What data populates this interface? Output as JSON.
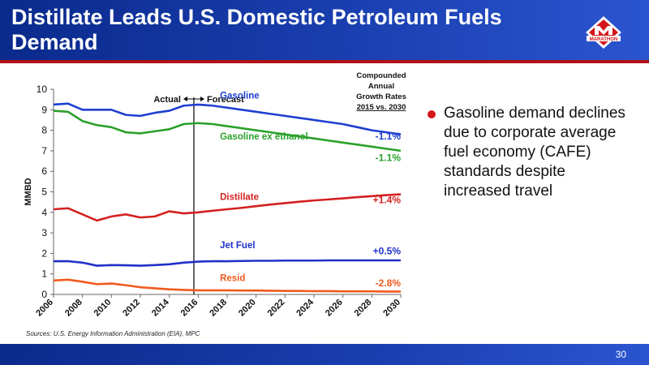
{
  "header": {
    "title": "Distillate Leads U.S. Domestic Petroleum Fuels Demand",
    "logo_text": "MARATHON"
  },
  "bullet": {
    "text": "Gasoline demand declines due to corporate average fuel economy (CAFE) standards despite increased travel"
  },
  "footer": {
    "sources": "Sources:  U.S. Energy Information Administration (EIA), MPC",
    "page_number": "30"
  },
  "colors": {
    "header_blue": "#1a3fb0",
    "accent_red": "#d4161b",
    "gasoline": "#1f3fd0",
    "gasoline_ex_ethanol": "#2aa02a",
    "distillate": "#d42020",
    "jet_fuel": "#2030c8",
    "resid": "#f05a1e"
  },
  "chart_data": {
    "type": "line",
    "ylabel": "MMBD",
    "ylim": [
      0,
      10
    ],
    "xlim": [
      2006,
      2030
    ],
    "yticks": [
      0,
      1,
      2,
      3,
      4,
      5,
      6,
      7,
      8,
      9,
      10
    ],
    "xticks": [
      "2006",
      "2008",
      "2010",
      "2012",
      "2014",
      "2016",
      "2018",
      "2020",
      "2022",
      "2024",
      "2026",
      "2028",
      "2030"
    ],
    "divider_x": 2015.7,
    "actual_label": "Actual",
    "forecast_label": "Forecast",
    "growth_header": [
      "Compounded",
      "Annual",
      "Growth Rates",
      "2015 vs. 2030"
    ],
    "x": [
      2006,
      2007,
      2008,
      2009,
      2010,
      2011,
      2012,
      2013,
      2014,
      2015,
      2016,
      2017,
      2018,
      2019,
      2020,
      2021,
      2022,
      2023,
      2024,
      2025,
      2026,
      2027,
      2028,
      2029,
      2030
    ],
    "series": [
      {
        "name": "Gasoline",
        "color": "#1f3fd0",
        "growth": "-1.1%",
        "values": [
          9.25,
          9.3,
          9.0,
          9.0,
          9.0,
          8.75,
          8.7,
          8.85,
          8.95,
          9.2,
          9.25,
          9.2,
          9.1,
          9.0,
          8.9,
          8.8,
          8.7,
          8.6,
          8.5,
          8.4,
          8.3,
          8.15,
          8.0,
          7.9,
          7.8
        ]
      },
      {
        "name": "Gasoline ex ethanol",
        "color": "#2aa02a",
        "growth": "-1.1%",
        "values": [
          8.95,
          8.9,
          8.45,
          8.25,
          8.15,
          7.9,
          7.85,
          7.95,
          8.05,
          8.3,
          8.35,
          8.3,
          8.2,
          8.1,
          8.0,
          7.9,
          7.8,
          7.7,
          7.6,
          7.5,
          7.4,
          7.3,
          7.2,
          7.1,
          7.0
        ]
      },
      {
        "name": "Distillate",
        "color": "#d42020",
        "growth": "+1.4%",
        "values": [
          4.15,
          4.2,
          3.9,
          3.6,
          3.8,
          3.9,
          3.75,
          3.8,
          4.05,
          3.95,
          4.0,
          4.08,
          4.15,
          4.22,
          4.3,
          4.38,
          4.45,
          4.52,
          4.58,
          4.63,
          4.68,
          4.74,
          4.79,
          4.84,
          4.88
        ]
      },
      {
        "name": "Jet Fuel",
        "color": "#2030c8",
        "growth": "+0.5%",
        "values": [
          1.62,
          1.62,
          1.55,
          1.4,
          1.43,
          1.42,
          1.4,
          1.43,
          1.47,
          1.55,
          1.6,
          1.62,
          1.62,
          1.63,
          1.64,
          1.64,
          1.65,
          1.65,
          1.65,
          1.66,
          1.66,
          1.66,
          1.66,
          1.66,
          1.66
        ]
      },
      {
        "name": "Resid",
        "color": "#f05a1e",
        "growth": "-2.8%",
        "values": [
          0.68,
          0.72,
          0.62,
          0.5,
          0.53,
          0.45,
          0.35,
          0.3,
          0.25,
          0.22,
          0.2,
          0.2,
          0.2,
          0.19,
          0.19,
          0.18,
          0.17,
          0.17,
          0.16,
          0.16,
          0.15,
          0.15,
          0.15,
          0.14,
          0.14
        ]
      }
    ]
  }
}
